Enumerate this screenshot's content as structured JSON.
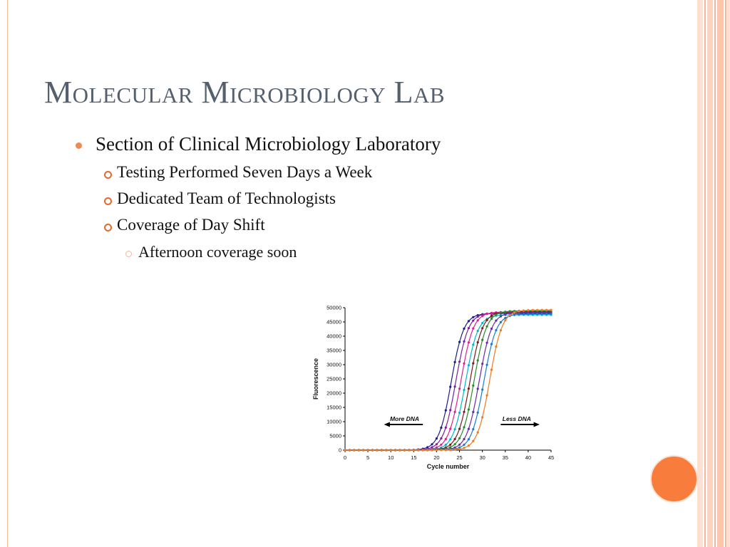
{
  "slide": {
    "title": "Molecular Microbiology Lab",
    "bullets": [
      {
        "level": 1,
        "text": "Section of Clinical Microbiology Laboratory"
      },
      {
        "level": 2,
        "text": "Testing Performed Seven Days a Week"
      },
      {
        "level": 2,
        "text": "Dedicated Team of Technologists"
      },
      {
        "level": 2,
        "text": "Coverage of Day Shift"
      },
      {
        "level": 3,
        "text": "Afternoon coverage soon"
      }
    ],
    "accent_color": "#f87c3c"
  },
  "chart_data": {
    "type": "line",
    "xlabel": "Cycle number",
    "ylabel": "Fluorescence",
    "xlim": [
      0,
      45
    ],
    "ylim": [
      0,
      50000
    ],
    "xticks": [
      0,
      5,
      10,
      15,
      20,
      25,
      30,
      35,
      40,
      45
    ],
    "yticks": [
      0,
      5000,
      10000,
      15000,
      20000,
      25000,
      30000,
      35000,
      40000,
      45000,
      50000
    ],
    "annotations": [
      {
        "text": "More DNA",
        "direction": "left"
      },
      {
        "text": "Less DNA",
        "direction": "right"
      }
    ],
    "series_colors": [
      "#1c1c8c",
      "#7a1fa0",
      "#e0208c",
      "#00b8c8",
      "#7a1a1a",
      "#2a8a2a",
      "#6a2aa0",
      "#1a7ad0",
      "#f07a20"
    ],
    "midpoint_cycles": [
      23.2,
      24.2,
      25.3,
      26.3,
      27.3,
      28.2,
      29.3,
      30.3,
      31.6
    ],
    "plateaus": [
      48000,
      48200,
      48500,
      47500,
      48600,
      48900,
      48400,
      47800,
      49200
    ]
  }
}
